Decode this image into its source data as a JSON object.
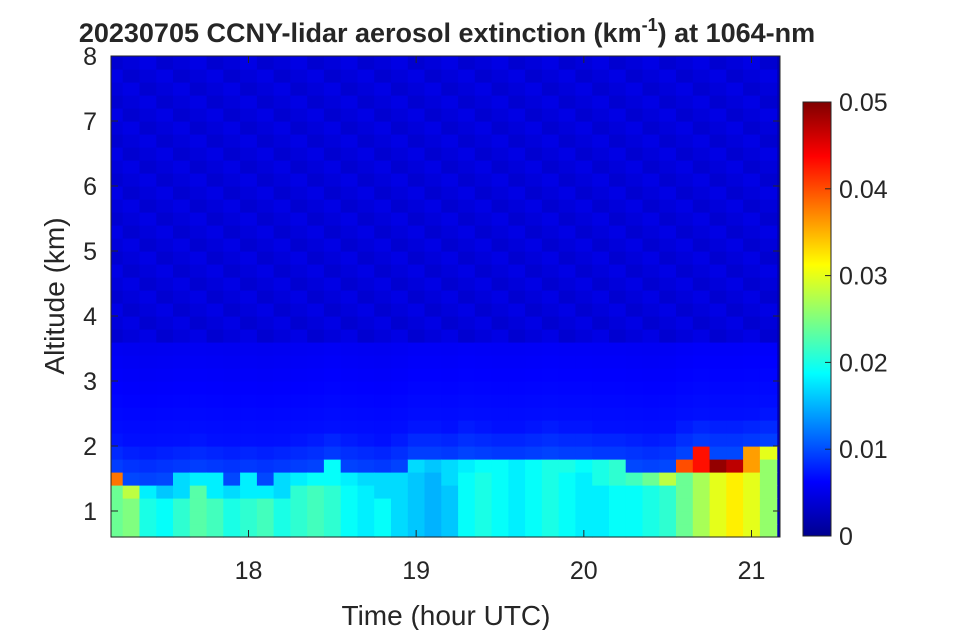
{
  "chart_data": {
    "type": "heatmap",
    "title": {
      "prefix": "20230705 CCNY-lidar aerosol extinction (km",
      "superscript": "-1",
      "suffix": ") at 1064-nm"
    },
    "xlabel": "Time (hour UTC)",
    "ylabel": "Altitude (km)",
    "xlim": [
      17.18,
      21.17
    ],
    "ylim": [
      0.6,
      8
    ],
    "x_ticks": [
      {
        "value": 18,
        "label": "18"
      },
      {
        "value": 19,
        "label": "19"
      },
      {
        "value": 20,
        "label": "20"
      },
      {
        "value": 21,
        "label": "21"
      }
    ],
    "y_ticks": [
      {
        "value": 1,
        "label": "1"
      },
      {
        "value": 2,
        "label": "2"
      },
      {
        "value": 3,
        "label": "3"
      },
      {
        "value": 4,
        "label": "4"
      },
      {
        "value": 5,
        "label": "5"
      },
      {
        "value": 6,
        "label": "6"
      },
      {
        "value": 7,
        "label": "7"
      },
      {
        "value": 8,
        "label": "8"
      }
    ],
    "colorbar": {
      "colormap": "jet",
      "range": [
        0,
        0.05
      ],
      "ticks": [
        {
          "value": 0,
          "label": "0"
        },
        {
          "value": 0.01,
          "label": "0.01"
        },
        {
          "value": 0.02,
          "label": "0.02"
        },
        {
          "value": 0.03,
          "label": "0.03"
        },
        {
          "value": 0.04,
          "label": "0.04"
        },
        {
          "value": 0.05,
          "label": "0.05"
        }
      ]
    },
    "grid": false,
    "x_times": [
      17.2,
      17.3,
      17.4,
      17.5,
      17.6,
      17.7,
      17.8,
      17.9,
      18.0,
      18.1,
      18.2,
      18.3,
      18.4,
      18.5,
      18.6,
      18.7,
      18.8,
      18.9,
      19.0,
      19.1,
      19.2,
      19.3,
      19.4,
      19.5,
      19.6,
      19.7,
      19.8,
      19.9,
      20.0,
      20.1,
      20.2,
      20.3,
      20.4,
      20.5,
      20.6,
      20.7,
      20.8,
      20.9,
      21.0,
      21.1
    ],
    "altitudes": [
      0.7,
      0.9,
      1.1,
      1.3,
      1.5,
      1.7,
      1.9,
      2.1,
      2.3,
      2.5,
      2.7,
      2.9,
      3.1,
      3.3,
      3.5,
      3.7,
      3.9,
      4.1,
      4.3,
      4.5,
      4.7,
      4.9,
      5.1,
      5.3,
      5.5,
      5.7,
      5.9,
      6.1,
      6.3,
      6.5,
      6.7,
      6.9,
      7.1,
      7.3,
      7.5,
      7.7,
      7.9
    ],
    "layer_top_km": [
      1.55,
      1.45,
      1.4,
      1.45,
      1.5,
      1.55,
      1.5,
      1.45,
      1.5,
      1.45,
      1.5,
      1.55,
      1.6,
      1.7,
      1.6,
      1.55,
      1.5,
      1.6,
      1.75,
      1.75,
      1.7,
      1.8,
      1.75,
      1.7,
      1.7,
      1.75,
      1.8,
      1.75,
      1.75,
      1.7,
      1.7,
      1.65,
      1.6,
      1.65,
      1.8,
      1.9,
      1.85,
      1.85,
      1.9,
      1.95
    ],
    "surface_extinction": [
      0.024,
      0.025,
      0.02,
      0.019,
      0.021,
      0.023,
      0.022,
      0.02,
      0.021,
      0.022,
      0.02,
      0.021,
      0.022,
      0.021,
      0.019,
      0.018,
      0.019,
      0.017,
      0.016,
      0.015,
      0.016,
      0.019,
      0.02,
      0.019,
      0.018,
      0.019,
      0.02,
      0.019,
      0.018,
      0.018,
      0.019,
      0.019,
      0.02,
      0.021,
      0.024,
      0.027,
      0.03,
      0.032,
      0.03,
      0.026
    ],
    "plume_peak_extinction": [
      0.038,
      0.028,
      0.018,
      0.016,
      0.017,
      0.018,
      0.018,
      0.017,
      0.018,
      0.018,
      0.017,
      0.018,
      0.019,
      0.019,
      0.018,
      0.017,
      0.017,
      0.017,
      0.017,
      0.016,
      0.017,
      0.018,
      0.019,
      0.019,
      0.018,
      0.019,
      0.02,
      0.02,
      0.019,
      0.02,
      0.021,
      0.022,
      0.024,
      0.028,
      0.04,
      0.043,
      0.049,
      0.047,
      0.036,
      0.03
    ],
    "free_troposphere_extinction": 0.004
  }
}
